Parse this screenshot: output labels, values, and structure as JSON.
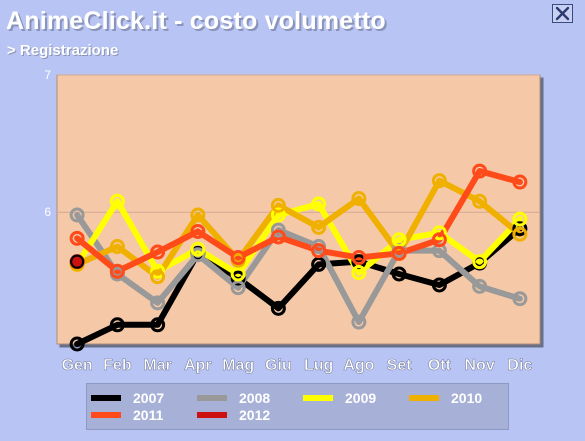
{
  "header": {
    "title": "AnimeClick.it - costo volumetto",
    "subtitle": "> Registrazione"
  },
  "close_icon": "close-icon",
  "colors": {
    "background": "#b8c4f4",
    "plot_area": "#f5c9a8",
    "legend_bg": "#a7b0d7"
  },
  "chart_data": {
    "type": "line",
    "title": "",
    "xlabel": "",
    "ylabel": "",
    "categories": [
      "Gen",
      "Feb",
      "Mar",
      "Apr",
      "Mag",
      "Giu",
      "Lug",
      "Ago",
      "Set",
      "Ott",
      "Nov",
      "Dic"
    ],
    "ylim": [
      5.04,
      7
    ],
    "y_ticks": [
      7,
      6
    ],
    "grid": true,
    "legend_position": "bottom",
    "series": [
      {
        "name": "2007",
        "color": "#000000",
        "values": [
          5.04,
          5.18,
          5.18,
          5.7,
          5.52,
          5.3,
          5.62,
          5.64,
          5.55,
          5.47,
          5.63,
          5.88
        ]
      },
      {
        "name": "2008",
        "color": "#999999",
        "values": [
          5.98,
          5.55,
          5.34,
          5.69,
          5.45,
          5.87,
          5.75,
          5.2,
          5.72,
          5.72,
          5.46,
          5.37
        ]
      },
      {
        "name": "2009",
        "color": "#ffff00",
        "values": [
          5.62,
          6.08,
          5.57,
          5.73,
          5.55,
          5.98,
          6.06,
          5.56,
          5.8,
          5.85,
          5.64,
          5.95
        ]
      },
      {
        "name": "2010",
        "color": "#f0b000",
        "values": [
          5.62,
          5.75,
          5.53,
          5.98,
          5.65,
          6.05,
          5.89,
          6.1,
          5.7,
          6.23,
          6.08,
          5.84
        ]
      },
      {
        "name": "2011",
        "color": "#ff4a1a",
        "values": [
          5.81,
          5.57,
          5.71,
          5.86,
          5.67,
          5.82,
          5.72,
          5.67,
          5.7,
          5.8,
          6.3,
          6.22
        ]
      },
      {
        "name": "2012",
        "color": "#cc1111",
        "values": [
          5.64,
          null,
          null,
          null,
          null,
          null,
          null,
          null,
          null,
          null,
          null,
          null
        ]
      }
    ]
  }
}
